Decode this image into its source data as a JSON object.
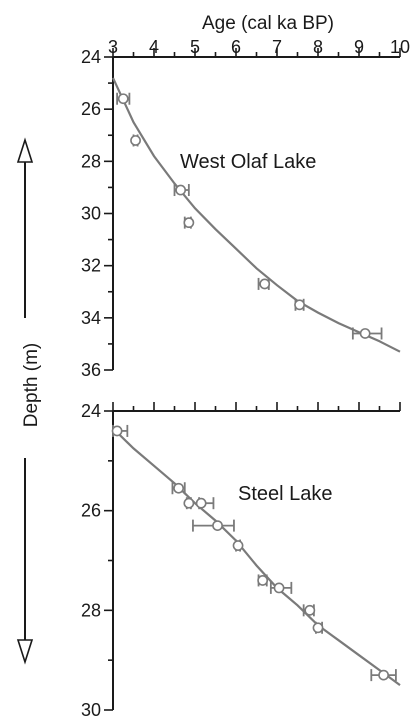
{
  "chart_data": {
    "type": "scatter",
    "xlabel": "Age (cal ka BP)",
    "ylabel": "Depth (m)",
    "xlim": [
      3,
      10
    ],
    "x_ticks": [
      "3",
      "4",
      "5",
      "6",
      "7",
      "8",
      "9",
      "10"
    ],
    "x_axis_position": "top",
    "grid": false,
    "panels": [
      {
        "title": "West Olaf Lake",
        "ylim": [
          24,
          36
        ],
        "y_ticks": [
          "24",
          "26",
          "28",
          "30",
          "32",
          "34",
          "36"
        ],
        "points": [
          {
            "x": 3.25,
            "y": 25.6,
            "xerr": [
              0.15,
              0.15
            ]
          },
          {
            "x": 3.55,
            "y": 27.2,
            "xerr": [
              0.05,
              0.05
            ]
          },
          {
            "x": 4.65,
            "y": 29.1,
            "xerr": [
              0.15,
              0.2
            ]
          },
          {
            "x": 4.85,
            "y": 30.35,
            "xerr": [
              0.1,
              0.05
            ]
          },
          {
            "x": 6.7,
            "y": 32.7,
            "xerr": [
              0.15,
              0.1
            ]
          },
          {
            "x": 7.55,
            "y": 33.5,
            "xerr": [
              0.1,
              0.1
            ]
          },
          {
            "x": 9.15,
            "y": 34.6,
            "xerr": [
              0.3,
              0.4
            ]
          }
        ],
        "curve": [
          [
            3.0,
            24.8
          ],
          [
            3.5,
            26.5
          ],
          [
            4.0,
            27.8
          ],
          [
            4.5,
            28.85
          ],
          [
            5.0,
            29.8
          ],
          [
            5.5,
            30.6
          ],
          [
            6.0,
            31.35
          ],
          [
            6.5,
            32.1
          ],
          [
            7.0,
            32.75
          ],
          [
            7.5,
            33.35
          ],
          [
            8.0,
            33.8
          ],
          [
            8.5,
            34.2
          ],
          [
            9.0,
            34.55
          ],
          [
            9.5,
            34.9
          ],
          [
            10.0,
            35.3
          ]
        ]
      },
      {
        "title": "Steel Lake",
        "ylim": [
          24,
          30
        ],
        "y_ticks": [
          "24",
          "26",
          "28",
          "30"
        ],
        "points": [
          {
            "x": 3.1,
            "y": 24.4,
            "xerr": [
              0.1,
              0.25
            ]
          },
          {
            "x": 4.6,
            "y": 25.55,
            "xerr": [
              0.15,
              0.15
            ]
          },
          {
            "x": 4.85,
            "y": 25.85,
            "xerr": [
              0.05,
              0.05
            ]
          },
          {
            "x": 5.15,
            "y": 25.85,
            "xerr": [
              0.05,
              0.3
            ]
          },
          {
            "x": 5.55,
            "y": 26.3,
            "xerr": [
              0.6,
              0.4
            ]
          },
          {
            "x": 6.05,
            "y": 26.7,
            "xerr": [
              0.05,
              0.05
            ]
          },
          {
            "x": 6.65,
            "y": 27.4,
            "xerr": [
              0.1,
              0.1
            ]
          },
          {
            "x": 7.05,
            "y": 27.55,
            "xerr": [
              0.2,
              0.3
            ]
          },
          {
            "x": 7.8,
            "y": 28.0,
            "xerr": [
              0.15,
              0.1
            ]
          },
          {
            "x": 8.0,
            "y": 28.35,
            "xerr": [
              0.05,
              0.1
            ]
          },
          {
            "x": 9.6,
            "y": 29.3,
            "xerr": [
              0.3,
              0.3
            ]
          }
        ],
        "curve": [
          [
            3.0,
            24.35
          ],
          [
            3.5,
            24.75
          ],
          [
            4.0,
            25.1
          ],
          [
            4.5,
            25.45
          ],
          [
            5.0,
            25.85
          ],
          [
            5.5,
            26.2
          ],
          [
            6.0,
            26.6
          ],
          [
            6.5,
            27.1
          ],
          [
            7.0,
            27.55
          ],
          [
            7.5,
            27.9
          ],
          [
            8.0,
            28.3
          ],
          [
            8.5,
            28.6
          ],
          [
            9.0,
            28.9
          ],
          [
            9.5,
            29.2
          ],
          [
            10.0,
            29.5
          ]
        ]
      }
    ]
  },
  "colors": {
    "axis": "#1a1a1a",
    "data": "#7a7a7a"
  }
}
